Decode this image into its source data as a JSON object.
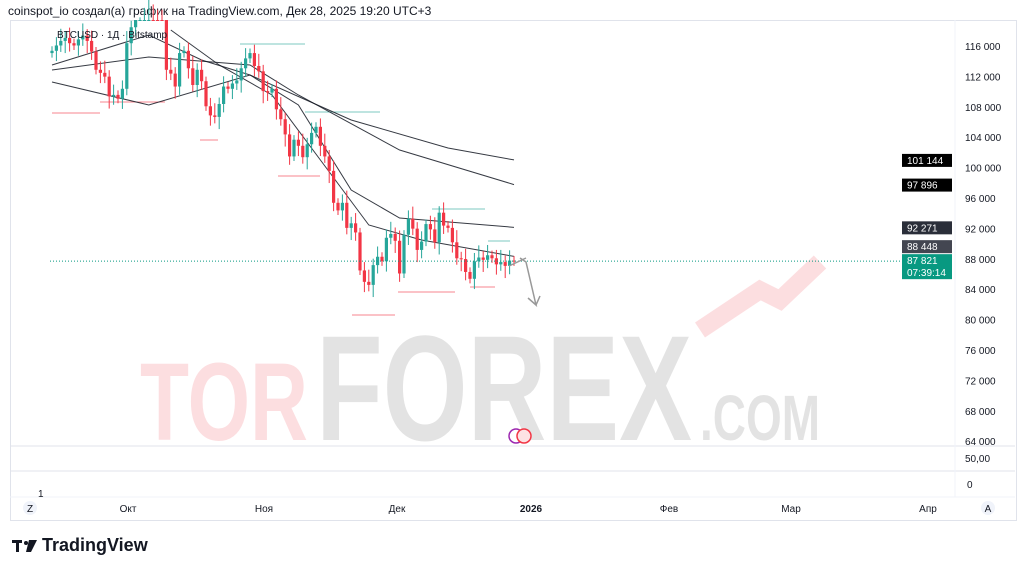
{
  "header": {
    "title": "coinspot_io создал(а) график на TradingView.com, Дек 28, 2025 19:20 UTC+3"
  },
  "chart_data": {
    "type": "candlestick",
    "symbol": "BTCUSD · 1Д · Bitstamp",
    "start_date": "2025-09-12",
    "closes": [
      115.5,
      116.2,
      116.8,
      117.2,
      116.5,
      116.2,
      117,
      117.5,
      116.8,
      115.4,
      113,
      112.6,
      112.1,
      109.5,
      109.7,
      109.2,
      110.5,
      116.5,
      118.6,
      120.5,
      122.5,
      123.5,
      124.5,
      123.2,
      122,
      121.5,
      113,
      112.5,
      110.8,
      115.2,
      115.5,
      113.2,
      111,
      113,
      111.5,
      108.2,
      107,
      106.8,
      108.5,
      110.8,
      110.5,
      111.2,
      111.6,
      113.2,
      114.5,
      115.2,
      113.5,
      112.8,
      110.2,
      110,
      110.5,
      107.8,
      106.5,
      104.5,
      101.6,
      103.8,
      103,
      101.5,
      103.2,
      104.7,
      105.5,
      103,
      101.6,
      99.7,
      95.5,
      94.5,
      95.5,
      92.2,
      92.8,
      91.6,
      86.6,
      85.1,
      84.7,
      87.3,
      88.4,
      87.8,
      90.9,
      91.4,
      90.5,
      86.2,
      91.3,
      93.4,
      92.1,
      89.3,
      90.4,
      92.7,
      92,
      90.3,
      94.2,
      92.5,
      92.2,
      90.3,
      88.2,
      88.1,
      86.4,
      85.5,
      87.8,
      88.3,
      88,
      88.6,
      88.2,
      87.4,
      87.7,
      87.2,
      87.9,
      87.8
    ],
    "close_unit": "thousand USD",
    "moving_averages": [
      {
        "points": [
          [
            0,
            111395
          ],
          [
            22,
            108368
          ],
          [
            45,
            112316
          ],
          [
            68,
            106395
          ],
          [
            90,
            102711
          ],
          [
            105,
            101144
          ]
        ],
        "last_label": "101 144"
      },
      {
        "points": [
          [
            0,
            112974
          ],
          [
            22,
            114684
          ],
          [
            45,
            113632
          ],
          [
            56,
            109684
          ],
          [
            79,
            102447
          ],
          [
            105,
            97896
          ]
        ],
        "last_label": "97 896"
      },
      {
        "points": [
          [
            0,
            113632
          ],
          [
            22,
            117579
          ],
          [
            34,
            114289
          ],
          [
            45,
            112316
          ],
          [
            56,
            108368
          ],
          [
            68,
            97184
          ],
          [
            79,
            93500
          ],
          [
            105,
            92271
          ]
        ],
        "last_label": "92 271"
      },
      {
        "points": [
          [
            27,
            118237
          ],
          [
            38,
            113632
          ],
          [
            50,
            109684
          ],
          [
            61,
            101132
          ],
          [
            72,
            92579
          ],
          [
            84,
            90605
          ],
          [
            105,
            88448
          ]
        ],
        "last_label": "88 448"
      }
    ],
    "last_price": "87 821",
    "countdown": "07:39:14",
    "last_price_value": 87821,
    "ylim": [
      62000,
      119000
    ],
    "y_ticks": [
      "116 000",
      "112 000",
      "108 000",
      "104 000",
      "100 000",
      "96 000",
      "92 000",
      "88 000",
      "84 000",
      "80 000",
      "76 000",
      "72 000",
      "68 000",
      "64 000"
    ],
    "y_tick_values": [
      116000,
      112000,
      108000,
      104000,
      100000,
      96000,
      92000,
      88000,
      84000,
      80000,
      76000,
      72000,
      68000,
      64000
    ],
    "x_ticks": [
      "Окт",
      "Ноя",
      "Дек",
      "2026",
      "Фев",
      "Мар",
      "Апр"
    ],
    "x_tick_bold": "2026",
    "sub_panel_1_label": "50,00",
    "sub_panel_2_label": "0",
    "sub_panel_2_marker": "1",
    "colors": {
      "up": "#26a69a",
      "down": "#f23645",
      "last": "#089981",
      "ma": "#131722"
    }
  },
  "watermark": {
    "text1": "TOR",
    "text2": "FOREX",
    "text3": ".COM"
  },
  "axis_buttons": {
    "left": "Z",
    "right": "A"
  },
  "footer": {
    "brand": "TradingView"
  }
}
